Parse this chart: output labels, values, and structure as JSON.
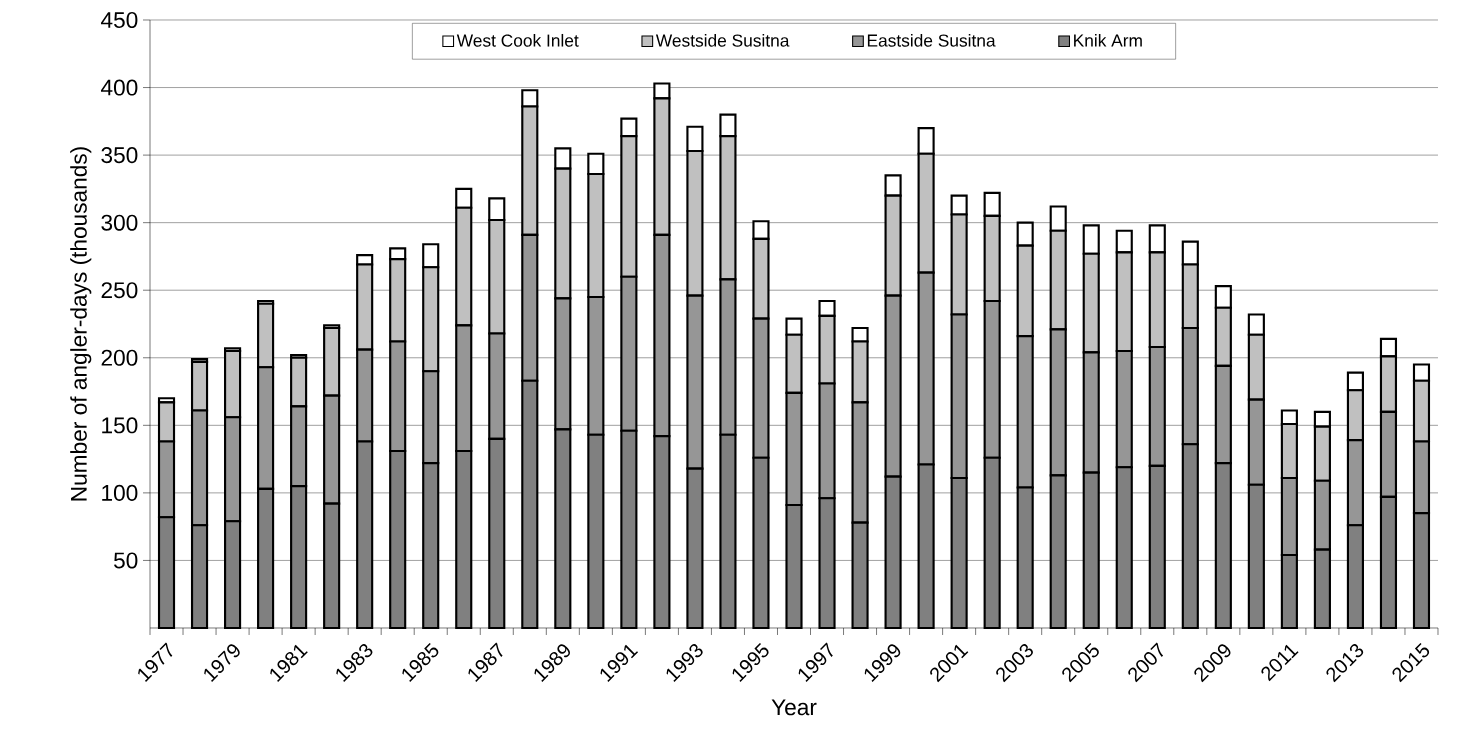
{
  "chart_data": {
    "type": "bar",
    "stacked": true,
    "xlabel": "Year",
    "ylabel": "Number of angler-days (thousands)",
    "categories": [
      "1977",
      null,
      "1979",
      null,
      "1981",
      null,
      "1983",
      null,
      "1985",
      null,
      "1987",
      null,
      "1989",
      null,
      "1991",
      null,
      "1993",
      null,
      "1995",
      null,
      "1997",
      null,
      "1999",
      null,
      "2001",
      null,
      "2003",
      null,
      "2005",
      null,
      "2007",
      null,
      "2009",
      null,
      "2011",
      null,
      "2013",
      null,
      "2015"
    ],
    "series": [
      {
        "name": "Knik Arm",
        "color": "#808080",
        "values": [
          82,
          76,
          79,
          103,
          105,
          92,
          138,
          131,
          122,
          131,
          140,
          183,
          147,
          143,
          146,
          142,
          118,
          143,
          126,
          91,
          96,
          78,
          112,
          121,
          111,
          126,
          104,
          113,
          115,
          119,
          120,
          136,
          122,
          106,
          54,
          58,
          76,
          97,
          85
        ]
      },
      {
        "name": "Eastside Susitna",
        "color": "#969696",
        "values": [
          56,
          85,
          77,
          90,
          59,
          80,
          68,
          81,
          68,
          93,
          78,
          108,
          97,
          102,
          114,
          149,
          128,
          115,
          103,
          83,
          85,
          89,
          134,
          142,
          121,
          116,
          112,
          108,
          89,
          86,
          88,
          86,
          72,
          63,
          57,
          51,
          63,
          63,
          53
        ]
      },
      {
        "name": "Westside Susitna",
        "color": "#c0c0c0",
        "values": [
          29,
          36,
          49,
          47,
          36,
          50,
          63,
          61,
          77,
          87,
          84,
          95,
          96,
          91,
          104,
          101,
          107,
          106,
          59,
          43,
          50,
          45,
          74,
          88,
          74,
          63,
          67,
          73,
          73,
          73,
          70,
          47,
          43,
          48,
          40,
          40,
          37,
          41,
          45
        ]
      },
      {
        "name": "West Cook Inlet",
        "color": "#ffffff",
        "values": [
          3,
          2,
          2,
          2,
          2,
          2,
          7,
          8,
          17,
          14,
          16,
          12,
          15,
          15,
          13,
          11,
          18,
          16,
          13,
          12,
          11,
          10,
          15,
          19,
          14,
          17,
          17,
          18,
          21,
          16,
          20,
          17,
          16,
          15,
          10,
          11,
          13,
          13,
          12
        ]
      }
    ],
    "ylim": [
      0,
      450
    ],
    "yticks": [
      50,
      100,
      150,
      200,
      250,
      300,
      350,
      400,
      450
    ],
    "grid": "y",
    "legend": "top"
  }
}
